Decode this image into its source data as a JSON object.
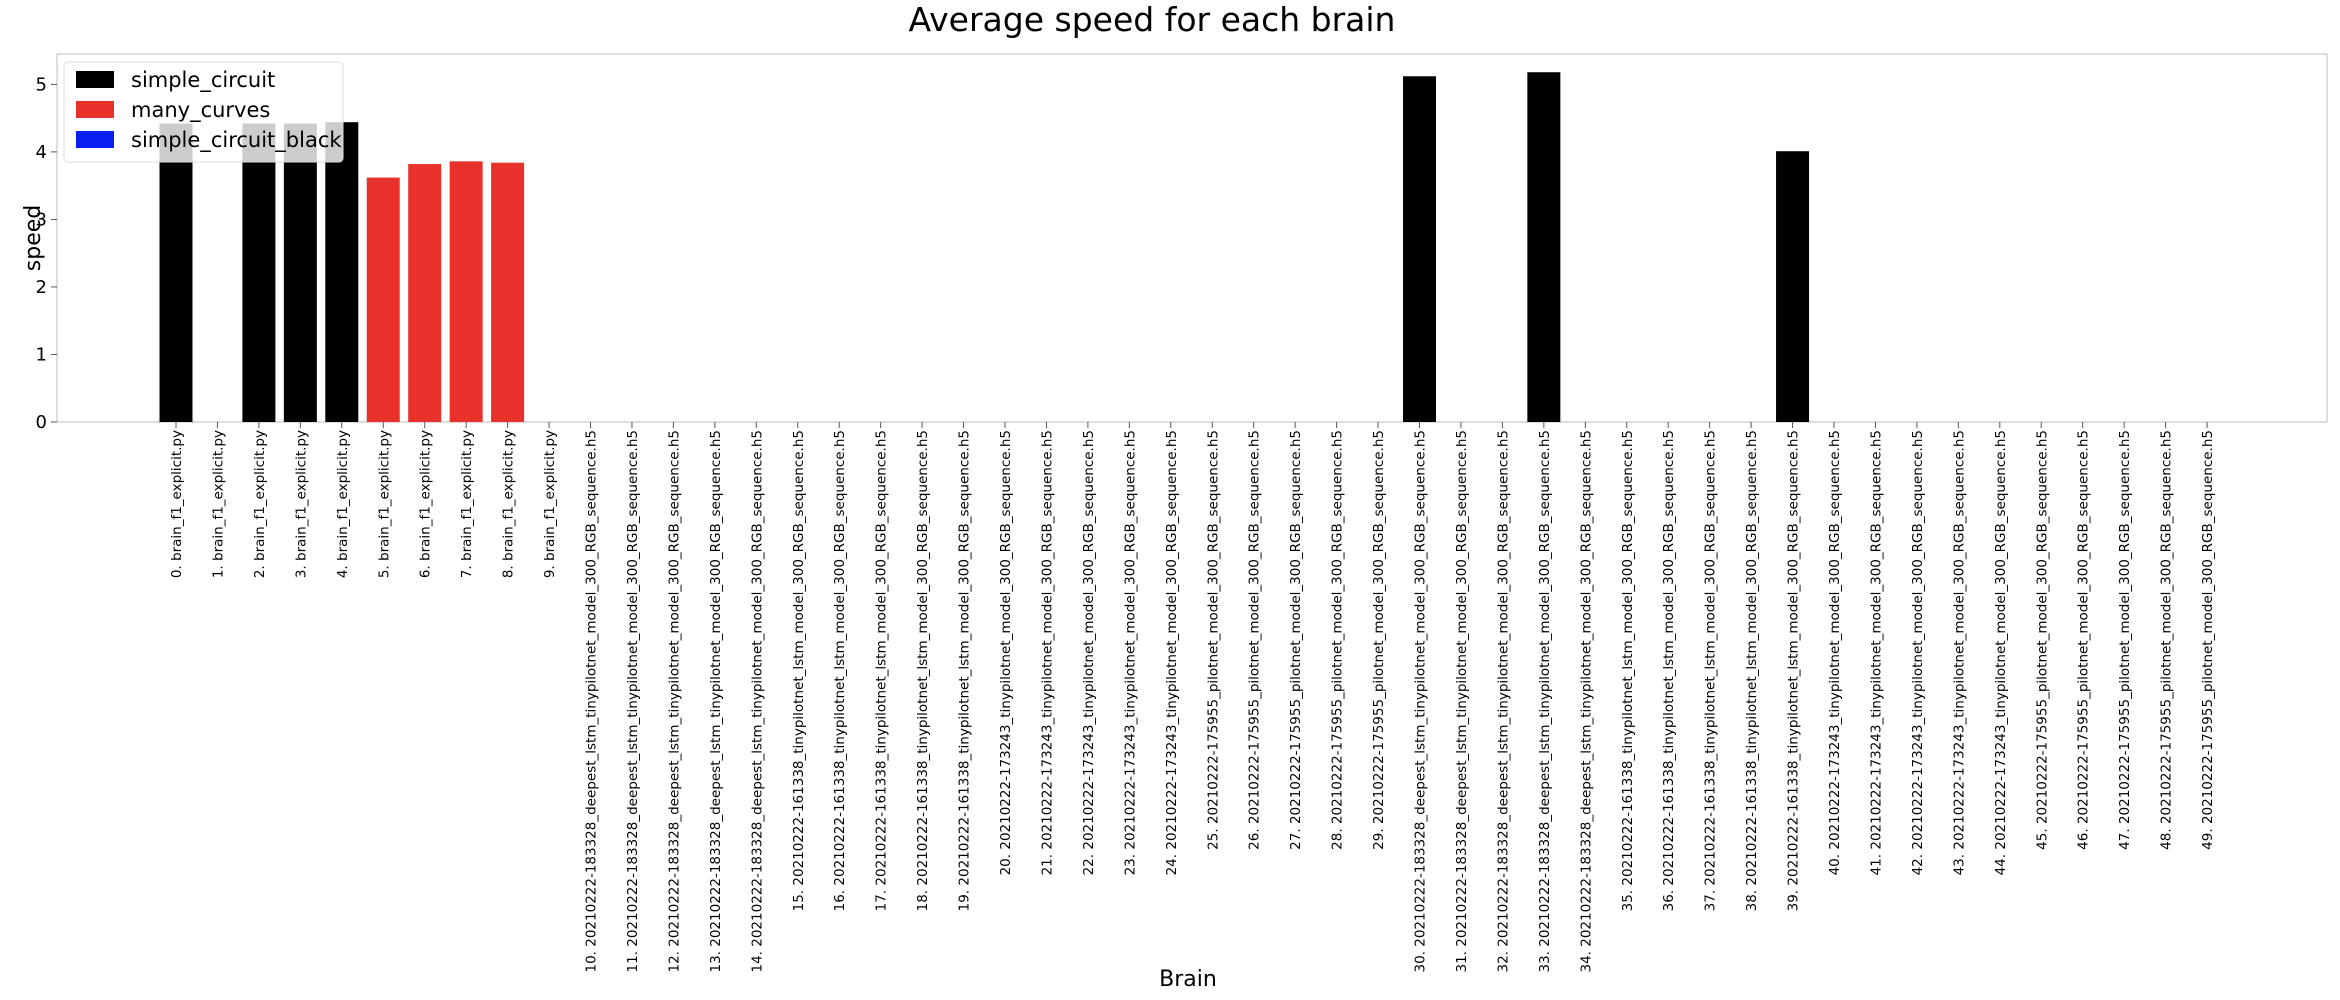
{
  "chart_data": {
    "type": "bar",
    "title": "Average speed for each brain",
    "xlabel": "Brain",
    "ylabel": "speed",
    "ylim": [
      0,
      5.45
    ],
    "yticks": [
      0,
      1,
      2,
      3,
      4,
      5
    ],
    "grid": false,
    "legend_position": "top-left",
    "series": [
      {
        "name": "simple_circuit",
        "color": "#000000"
      },
      {
        "name": "many_curves",
        "color": "#e8312a"
      },
      {
        "name": "simple_circuit_black",
        "color": "#0a1ff2"
      }
    ],
    "categories": [
      "0. brain_f1_explicit.py",
      "1. brain_f1_explicit.py",
      "2. brain_f1_explicit.py",
      "3. brain_f1_explicit.py",
      "4. brain_f1_explicit.py",
      "5. brain_f1_explicit.py",
      "6. brain_f1_explicit.py",
      "7. brain_f1_explicit.py",
      "8. brain_f1_explicit.py",
      "9. brain_f1_explicit.py",
      "10. 20210222-183328_deepest_lstm_tinypilotnet_model_300_RGB_sequence.h5",
      "11. 20210222-183328_deepest_lstm_tinypilotnet_model_300_RGB_sequence.h5",
      "12. 20210222-183328_deepest_lstm_tinypilotnet_model_300_RGB_sequence.h5",
      "13. 20210222-183328_deepest_lstm_tinypilotnet_model_300_RGB_sequence.h5",
      "14. 20210222-183328_deepest_lstm_tinypilotnet_model_300_RGB_sequence.h5",
      "15. 20210222-161338_tinypilotnet_lstm_model_300_RGB_sequence.h5",
      "16. 20210222-161338_tinypilotnet_lstm_model_300_RGB_sequence.h5",
      "17. 20210222-161338_tinypilotnet_lstm_model_300_RGB_sequence.h5",
      "18. 20210222-161338_tinypilotnet_lstm_model_300_RGB_sequence.h5",
      "19. 20210222-161338_tinypilotnet_lstm_model_300_RGB_sequence.h5",
      "20. 20210222-173243_tinypilotnet_model_300_RGB_sequence.h5",
      "21. 20210222-173243_tinypilotnet_model_300_RGB_sequence.h5",
      "22. 20210222-173243_tinypilotnet_model_300_RGB_sequence.h5",
      "23. 20210222-173243_tinypilotnet_model_300_RGB_sequence.h5",
      "24. 20210222-173243_tinypilotnet_model_300_RGB_sequence.h5",
      "25. 20210222-175955_pilotnet_model_300_RGB_sequence.h5",
      "26. 20210222-175955_pilotnet_model_300_RGB_sequence.h5",
      "27. 20210222-175955_pilotnet_model_300_RGB_sequence.h5",
      "28. 20210222-175955_pilotnet_model_300_RGB_sequence.h5",
      "29. 20210222-175955_pilotnet_model_300_RGB_sequence.h5",
      "30. 20210222-183328_deepest_lstm_tinypilotnet_model_300_RGB_sequence.h5",
      "31. 20210222-183328_deepest_lstm_tinypilotnet_model_300_RGB_sequence.h5",
      "32. 20210222-183328_deepest_lstm_tinypilotnet_model_300_RGB_sequence.h5",
      "33. 20210222-183328_deepest_lstm_tinypilotnet_model_300_RGB_sequence.h5",
      "34. 20210222-183328_deepest_lstm_tinypilotnet_model_300_RGB_sequence.h5",
      "35. 20210222-161338_tinypilotnet_lstm_model_300_RGB_sequence.h5",
      "36. 20210222-161338_tinypilotnet_lstm_model_300_RGB_sequence.h5",
      "37. 20210222-161338_tinypilotnet_lstm_model_300_RGB_sequence.h5",
      "38. 20210222-161338_tinypilotnet_lstm_model_300_RGB_sequence.h5",
      "39. 20210222-161338_tinypilotnet_lstm_model_300_RGB_sequence.h5",
      "40. 20210222-173243_tinypilotnet_model_300_RGB_sequence.h5",
      "41. 20210222-173243_tinypilotnet_model_300_RGB_sequence.h5",
      "42. 20210222-173243_tinypilotnet_model_300_RGB_sequence.h5",
      "43. 20210222-173243_tinypilotnet_model_300_RGB_sequence.h5",
      "44. 20210222-173243_tinypilotnet_model_300_RGB_sequence.h5",
      "45. 20210222-175955_pilotnet_model_300_RGB_sequence.h5",
      "46. 20210222-175955_pilotnet_model_300_RGB_sequence.h5",
      "47. 20210222-175955_pilotnet_model_300_RGB_sequence.h5",
      "48. 20210222-175955_pilotnet_model_300_RGB_sequence.h5",
      "49. 20210222-175955_pilotnet_model_300_RGB_sequence.h5"
    ],
    "values": [
      4.42,
      0,
      4.42,
      4.42,
      4.44,
      3.62,
      3.82,
      3.86,
      3.84,
      0,
      0,
      0,
      0,
      0,
      0,
      0,
      0,
      0,
      0,
      0,
      0,
      0,
      0,
      0,
      0,
      0,
      0,
      0,
      0,
      0,
      5.12,
      0,
      0,
      5.18,
      0,
      0,
      0,
      0,
      0,
      4.01,
      0,
      0,
      0,
      0,
      0,
      0,
      0,
      0,
      0,
      0
    ],
    "bar_series": [
      "simple_circuit",
      "simple_circuit",
      "simple_circuit",
      "simple_circuit",
      "simple_circuit",
      "many_curves",
      "many_curves",
      "many_curves",
      "many_curves",
      "many_curves",
      "simple_circuit",
      "simple_circuit",
      "simple_circuit",
      "simple_circuit",
      "simple_circuit",
      "simple_circuit",
      "simple_circuit",
      "simple_circuit",
      "simple_circuit",
      "simple_circuit",
      "simple_circuit",
      "simple_circuit",
      "simple_circuit",
      "simple_circuit",
      "simple_circuit",
      "simple_circuit",
      "simple_circuit",
      "simple_circuit",
      "simple_circuit",
      "simple_circuit",
      "simple_circuit",
      "simple_circuit",
      "simple_circuit",
      "simple_circuit",
      "simple_circuit",
      "simple_circuit",
      "simple_circuit",
      "simple_circuit",
      "simple_circuit",
      "simple_circuit",
      "simple_circuit",
      "simple_circuit",
      "simple_circuit",
      "simple_circuit",
      "simple_circuit",
      "simple_circuit",
      "simple_circuit",
      "simple_circuit",
      "simple_circuit",
      "simple_circuit"
    ]
  }
}
